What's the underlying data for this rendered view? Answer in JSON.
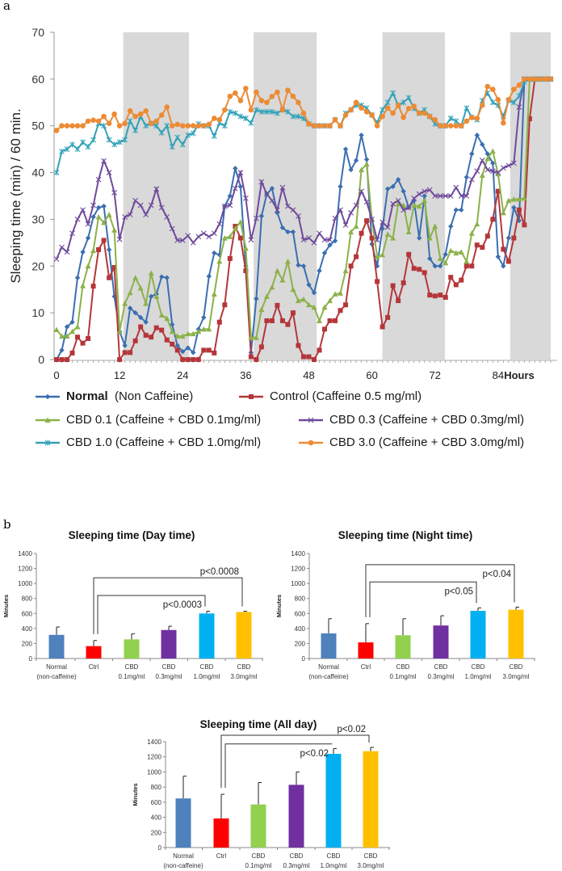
{
  "panels": {
    "a": "a",
    "b": "b"
  },
  "legend": [
    {
      "name": "Normal",
      "desc": "(Non Caffeine)",
      "color": "#3a6fb0",
      "marker": "diamond"
    },
    {
      "name": "Control",
      "desc": "(Caffeine 0.5 mg/ml)",
      "color": "#b5363a",
      "marker": "square"
    },
    {
      "name": "CBD 0.1",
      "desc": "(Caffeine + CBD 0.1mg/ml)",
      "color": "#8cb14a",
      "marker": "triangle"
    },
    {
      "name": "CBD 0.3",
      "desc": "(Caffeine + CBD 0.3mg/ml)",
      "color": "#6f4a9b",
      "marker": "x"
    },
    {
      "name": "CBD 1.0",
      "desc": "(Caffeine + CBD 1.0mg/ml)",
      "color": "#33a2b8",
      "marker": "star"
    },
    {
      "name": "CBD 3.0",
      "desc": "(Caffeine + CBD 3.0mg/ml)",
      "color": "#ec8b34",
      "marker": "circle"
    }
  ],
  "chart_data": [
    {
      "type": "line",
      "ylabel": "Sleeping time (min) / 60 min.",
      "xlabel": "Hours",
      "xlim": [
        0,
        94
      ],
      "ylim": [
        0,
        70
      ],
      "yticks": [
        0,
        10,
        20,
        30,
        40,
        50,
        60,
        70
      ],
      "xticks": [
        0,
        12,
        24,
        36,
        48,
        60,
        72,
        84
      ],
      "shaded_periods_hours": [
        [
          12.7,
          25.2
        ],
        [
          37.5,
          49.5
        ],
        [
          62,
          73.9
        ],
        [
          86.3,
          94
        ]
      ],
      "x_step_hours": 1,
      "series": [
        {
          "name": "Normal (Non Caffeine)",
          "values": [
            0,
            2,
            7,
            8,
            17.5,
            23,
            26,
            30.5,
            32.5,
            32.8,
            23.5,
            13.5,
            6,
            3,
            11,
            10,
            9,
            8,
            13.5,
            14,
            17.7,
            17.5,
            7.5,
            3,
            1.7,
            2.5,
            1.5,
            6.5,
            9,
            17.8,
            22.8,
            22.4,
            32.8,
            35,
            40.9,
            37,
            20,
            1.5,
            13,
            30.7,
            35.4,
            36.6,
            31.4,
            28.2,
            27.3,
            27.3,
            20.2,
            20,
            16,
            14.3,
            19,
            22.8,
            24.5,
            25.4,
            37,
            45,
            40.6,
            42.6,
            48,
            42.8,
            24.7,
            20,
            28,
            36.5,
            37,
            38.5,
            36,
            32.5,
            34,
            26,
            35,
            21.6,
            20,
            20,
            22.5,
            28.5,
            32,
            32,
            39,
            44,
            48,
            46,
            44,
            42,
            22,
            20,
            26,
            32.5,
            29.7,
            60,
            60,
            60,
            60,
            60,
            60
          ]
        },
        {
          "name": "Control (Caffeine 0.5 mg/ml)",
          "values": [
            0,
            0,
            0,
            1.4,
            4.8,
            3.5,
            4.5,
            15.7,
            23.5,
            25.5,
            17.5,
            19.7,
            0,
            1.5,
            1.5,
            4,
            7,
            5.2,
            4.8,
            6.8,
            6.3,
            4.2,
            3.3,
            2,
            0,
            0,
            0,
            0,
            2,
            2,
            1.4,
            8,
            11.7,
            21.6,
            28.5,
            26,
            19,
            0.6,
            0,
            2.7,
            8.3,
            8.3,
            11.6,
            8.3,
            7.5,
            10,
            3,
            0.6,
            0.6,
            0,
            2,
            6.5,
            8.3,
            8.3,
            10.5,
            11.7,
            20,
            22,
            27,
            29.7,
            26,
            16.7,
            7,
            9,
            15.8,
            12.6,
            16.4,
            22.5,
            19.5,
            19.3,
            18.6,
            13.8,
            13.6,
            13.8,
            13.3,
            17.6,
            16,
            17,
            20,
            20,
            24.5,
            24,
            26.4,
            30,
            36,
            23.6,
            21,
            26,
            32,
            28.8,
            51.5,
            60,
            60,
            60,
            60
          ]
        },
        {
          "name": "CBD 0.1 (Caffeine + CBD 0.1mg/ml)",
          "values": [
            6.4,
            5,
            5,
            6,
            7,
            15.8,
            20,
            23.3,
            30.5,
            29.3,
            31,
            27.7,
            6,
            12,
            14.3,
            17.5,
            15.3,
            12,
            18.5,
            13.5,
            9.5,
            8.8,
            6,
            5,
            5,
            5.5,
            5.5,
            6,
            6.5,
            6.5,
            14,
            21,
            26,
            26.3,
            28,
            29.4,
            23.8,
            4.7,
            4.7,
            10.7,
            13.5,
            15.5,
            19,
            17,
            21,
            15,
            12.6,
            12.9,
            11.7,
            11.2,
            8.3,
            11.2,
            12.6,
            14,
            14.2,
            19,
            27.3,
            28.5,
            40.6,
            41.8,
            30,
            22,
            22.4,
            26.8,
            26,
            33.3,
            33,
            27.3,
            33,
            32.8,
            34,
            26,
            28.5,
            21.6,
            20.7,
            23.3,
            22.8,
            23,
            21,
            27,
            29,
            39.4,
            43,
            44.6,
            39.7,
            31.4,
            34,
            34.3,
            34.3,
            34.5,
            60,
            60,
            60,
            60,
            60
          ]
        },
        {
          "name": "CBD 0.3 (Caffeine + CBD 0.3mg/ml)",
          "values": [
            21.5,
            24,
            23,
            27,
            30,
            32,
            29,
            33,
            38.5,
            42.5,
            40,
            35.7,
            25.7,
            30.5,
            31,
            34,
            33,
            31,
            33,
            36.5,
            32.5,
            30.5,
            28,
            25.5,
            25.5,
            26.5,
            25,
            26.3,
            27,
            26.3,
            27,
            29,
            32.8,
            33,
            36.6,
            40,
            34.5,
            25.6,
            30.2,
            38,
            35.4,
            34,
            32,
            36.8,
            32.8,
            32,
            30.7,
            25.6,
            26,
            25,
            27,
            25.6,
            25.6,
            30.2,
            32,
            28.8,
            31.4,
            33,
            36,
            33.7,
            30,
            25.6,
            29.4,
            28.3,
            33.3,
            34,
            32,
            32.5,
            34.5,
            35.4,
            36,
            36.3,
            35,
            35,
            35,
            35,
            36.8,
            35,
            35,
            38.5,
            40.3,
            42.6,
            40.6,
            40.3,
            40,
            41,
            41.5,
            42,
            54,
            60,
            60,
            60,
            60,
            60,
            60
          ]
        },
        {
          "name": "CBD 1.0 (Caffeine + CBD 1.0mg/ml)",
          "values": [
            40,
            44.5,
            45,
            46,
            45,
            46.5,
            45.5,
            47,
            50.5,
            50,
            47,
            46,
            46.5,
            47,
            51,
            49,
            52,
            50,
            50.5,
            50,
            48.5,
            50,
            45.5,
            47.5,
            46,
            48,
            48.4,
            50.4,
            50,
            50,
            47.8,
            50.6,
            50,
            53,
            52.7,
            52,
            51.6,
            50.6,
            53.4,
            53,
            53,
            53,
            52.7,
            53.4,
            53,
            52,
            52,
            51.6,
            50.4,
            50,
            50,
            50,
            50,
            51.3,
            50,
            52.7,
            53.4,
            54.4,
            54.4,
            53.8,
            52.3,
            50.6,
            53.4,
            55,
            57,
            54.4,
            55,
            56,
            53.7,
            52.7,
            53.4,
            52,
            50.4,
            50,
            50,
            51.6,
            51,
            50,
            53.8,
            51.8,
            51.3,
            55.4,
            57,
            55,
            54.4,
            52,
            55.4,
            55,
            56.4,
            59.4,
            60,
            60,
            60,
            60,
            60
          ]
        },
        {
          "name": "CBD 3.0 (Caffeine + CBD 3.0mg/ml)",
          "values": [
            49,
            50,
            50,
            50,
            50,
            50,
            51,
            51.2,
            51,
            52,
            50.5,
            52.5,
            50,
            50.5,
            53.2,
            52,
            52.5,
            53.2,
            50.5,
            51,
            52.3,
            54,
            50,
            50.3,
            50,
            50,
            50,
            50,
            50,
            50.3,
            51.6,
            51.3,
            53.4,
            56.3,
            57,
            55.4,
            58,
            53.4,
            57.2,
            55.4,
            55,
            56.3,
            57.2,
            53.4,
            57.6,
            56.3,
            55,
            52.7,
            50.4,
            50,
            50,
            50,
            50,
            51.3,
            50,
            52.3,
            53.4,
            55,
            53.8,
            53,
            52.3,
            50,
            52,
            53.8,
            52.7,
            54.4,
            51.8,
            53.7,
            54.2,
            52.7,
            52.7,
            52,
            51.3,
            50,
            50,
            50,
            50,
            50,
            51,
            51.8,
            51.6,
            54.4,
            58.4,
            57.8,
            55.6,
            50.6,
            55.6,
            57.8,
            58.7,
            60,
            60,
            60,
            60,
            60,
            60
          ]
        }
      ]
    },
    {
      "type": "bar",
      "title": "Sleeping time (Day time)",
      "ylabel": "Minutes",
      "ylim": [
        0,
        1400
      ],
      "yticks": [
        0,
        200,
        400,
        600,
        800,
        1000,
        1200,
        1400
      ],
      "categories": [
        [
          "Normal",
          "(non-caffeine)"
        ],
        [
          "Ctrl",
          ""
        ],
        [
          "CBD",
          "0.1mg/ml"
        ],
        [
          "CBD",
          "0.3mg/ml"
        ],
        [
          "CBD",
          "1.0mg/ml"
        ],
        [
          "CBD",
          "3.0mg/ml"
        ]
      ],
      "values": [
        315,
        165,
        255,
        380,
        600,
        620
      ],
      "errors": [
        105,
        75,
        75,
        50,
        30,
        10
      ],
      "brackets": [
        {
          "from": 1,
          "to": 5,
          "level": 1075,
          "label": "p<0.0008",
          "label_pos": "above"
        },
        {
          "from": 1,
          "to": 4,
          "level": 840,
          "label": "p<0.0003",
          "label_pos": "below"
        }
      ]
    },
    {
      "type": "bar",
      "title": "Sleeping time (Night time)",
      "ylabel": "Minutes",
      "ylim": [
        0,
        1400
      ],
      "yticks": [
        0,
        200,
        400,
        600,
        800,
        1000,
        1200,
        1400
      ],
      "categories": [
        [
          "Normal",
          "(non-caffeine)"
        ],
        [
          "Ctrl",
          ""
        ],
        [
          "CBD",
          "0.1mg/ml"
        ],
        [
          "CBD",
          "0.3mg/ml"
        ],
        [
          "CBD",
          "1.0mg/ml"
        ],
        [
          "CBD",
          "3.0mg/ml"
        ]
      ],
      "values": [
        335,
        215,
        310,
        440,
        635,
        650
      ],
      "errors": [
        195,
        250,
        220,
        130,
        40,
        35
      ],
      "brackets": [
        {
          "from": 1,
          "to": 5,
          "level": 1250,
          "label": "p<0.04",
          "label_pos": "below"
        },
        {
          "from": 1,
          "to": 4,
          "level": 1020,
          "label": "p<0.05",
          "label_pos": "below"
        }
      ]
    },
    {
      "type": "bar",
      "title": "Sleeping time (All day)",
      "ylabel": "Minutes",
      "ylim": [
        0,
        1400
      ],
      "yticks": [
        0,
        200,
        400,
        600,
        800,
        1000,
        1200,
        1400
      ],
      "categories": [
        [
          "Normal",
          "(non-caffeine)"
        ],
        [
          "Ctrl",
          ""
        ],
        [
          "CBD",
          "0.1mg/ml"
        ],
        [
          "CBD",
          "0.3mg/ml"
        ],
        [
          "CBD",
          "1.0mg/ml"
        ],
        [
          "CBD",
          "3.0mg/ml"
        ]
      ],
      "values": [
        650,
        385,
        570,
        830,
        1240,
        1275
      ],
      "errors": [
        295,
        320,
        290,
        170,
        70,
        50
      ],
      "brackets": [
        {
          "from": 1,
          "to": 5,
          "level": 1485,
          "label": "p<0.02",
          "label_pos": "above"
        },
        {
          "from": 1,
          "to": 4,
          "level": 1370,
          "label": "p<0.02",
          "label_pos": "below"
        }
      ]
    }
  ],
  "bar_colors": [
    "#4f81bd",
    "#ff0000",
    "#92d050",
    "#7030a0",
    "#00b0f0",
    "#ffc000"
  ]
}
